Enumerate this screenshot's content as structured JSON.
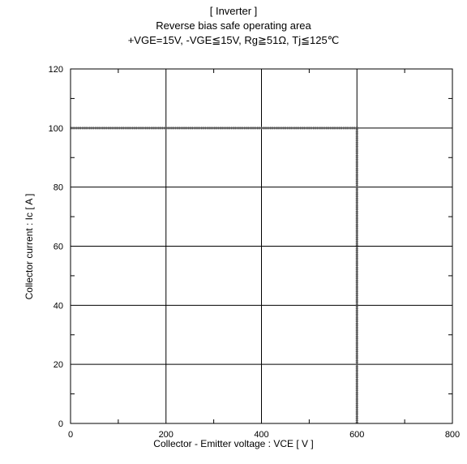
{
  "chart_data": {
    "type": "line",
    "title": "[ Inverter ]",
    "subtitle": "Reverse bias safe operating area",
    "conditions": "+VGE=15V,  -VGE≦15V, Rg≧51Ω,  Tj≦125℃",
    "xlabel": "Collector - Emitter voltage  :  VCE  [ V ]",
    "ylabel": "Collector current  : Ic  [ A ]",
    "xlim": [
      0,
      800
    ],
    "ylim": [
      0,
      120
    ],
    "xticks": [
      0,
      200,
      400,
      600,
      800
    ],
    "yticks": [
      0,
      20,
      40,
      60,
      80,
      100,
      120
    ],
    "grid": true,
    "series": [
      {
        "x": [
          0,
          600,
          600
        ],
        "y": [
          100,
          100,
          0
        ],
        "color": "#555555"
      }
    ]
  }
}
